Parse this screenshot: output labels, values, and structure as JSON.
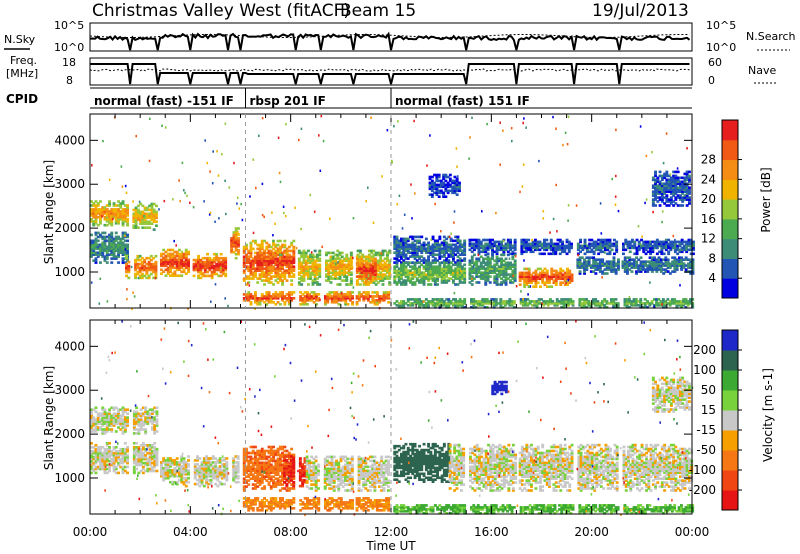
{
  "header": {
    "title": "Christmas Valley West (fitACF)",
    "beam": "Beam 15",
    "date": "19/Jul/2013"
  },
  "strip": {
    "nsky_label": "N.Sky",
    "nsky_ticks": [
      "10^5",
      "10^0"
    ],
    "nsearch_label": "N.Search",
    "freq_label_1": "Freq.",
    "freq_label_2": "[MHz]",
    "freq_ticks": [
      "18",
      "8"
    ],
    "nave_label": "Nave",
    "nave_ticks": [
      "60",
      "0"
    ],
    "cpid_label": "CPID",
    "cpid_segments": [
      {
        "start_hour": 0,
        "end_hour": 6.2,
        "name": "normal (fast) -151 IF"
      },
      {
        "start_hour": 6.2,
        "end_hour": 12.0,
        "name": "rbsp 201 IF"
      },
      {
        "start_hour": 12.0,
        "end_hour": 24,
        "name": "normal (fast) 151 IF"
      }
    ]
  },
  "chart_data": [
    {
      "type": "heatmap",
      "name": "power",
      "ylabel": "Slant Range [km]",
      "xlabel": "Time UT",
      "xlim": [
        0,
        24
      ],
      "ylim": [
        180,
        4600
      ],
      "xticks": [
        "00:00",
        "04:00",
        "08:00",
        "12:00",
        "16:00",
        "20:00",
        "00:00"
      ],
      "yticks": [
        1000,
        2000,
        3000,
        4000
      ],
      "colorbar": {
        "label": "Power [dB]",
        "ticks": [
          4,
          8,
          12,
          16,
          20,
          24,
          28
        ],
        "colors": [
          "#0000e0",
          "#2255b4",
          "#3c8c78",
          "#4caa50",
          "#96c83c",
          "#f0b400",
          "#f58c14",
          "#f05a14",
          "#e61e1e"
        ]
      },
      "gaps_hours": [
        1.6,
        2.7,
        4.0,
        5.5,
        6.0,
        8.2,
        9.2,
        10.5,
        12.0,
        15.0,
        17.0,
        19.3,
        21.1
      ],
      "echo_bands": [
        {
          "t0": 0.0,
          "t1": 1.6,
          "r0": 2050,
          "r1": 2600,
          "level": 22
        },
        {
          "t0": 1.6,
          "t1": 2.7,
          "r0": 1950,
          "r1": 2550,
          "level": 20
        },
        {
          "t0": 0.0,
          "t1": 1.6,
          "r0": 1200,
          "r1": 1900,
          "level": 10
        },
        {
          "t0": 1.4,
          "t1": 2.7,
          "r0": 850,
          "r1": 1350,
          "level": 26
        },
        {
          "t0": 2.7,
          "t1": 4.0,
          "r0": 900,
          "r1": 1500,
          "level": 28
        },
        {
          "t0": 4.0,
          "t1": 5.5,
          "r0": 850,
          "r1": 1400,
          "level": 28
        },
        {
          "t0": 5.5,
          "t1": 6.0,
          "r0": 1300,
          "r1": 2000,
          "level": 26
        },
        {
          "t0": 6.0,
          "t1": 8.2,
          "r0": 700,
          "r1": 1700,
          "level": 27
        },
        {
          "t0": 6.0,
          "t1": 12.0,
          "r0": 250,
          "r1": 550,
          "level": 27
        },
        {
          "t0": 8.2,
          "t1": 12.0,
          "r0": 700,
          "r1": 1500,
          "level": 20
        },
        {
          "t0": 10.6,
          "t1": 11.4,
          "r0": 700,
          "r1": 1350,
          "level": 28
        },
        {
          "t0": 12.0,
          "t1": 15.0,
          "r0": 1200,
          "r1": 1800,
          "level": 7
        },
        {
          "t0": 12.0,
          "t1": 15.0,
          "r0": 700,
          "r1": 1200,
          "level": 15
        },
        {
          "t0": 15.0,
          "t1": 24.0,
          "r0": 1400,
          "r1": 1750,
          "level": 6
        },
        {
          "t0": 15.0,
          "t1": 17.0,
          "r0": 700,
          "r1": 1400,
          "level": 12
        },
        {
          "t0": 17.0,
          "t1": 19.3,
          "r0": 650,
          "r1": 1100,
          "level": 27
        },
        {
          "t0": 19.3,
          "t1": 24.0,
          "r0": 950,
          "r1": 1350,
          "level": 8
        },
        {
          "t0": 12.0,
          "t1": 24.0,
          "r0": 180,
          "r1": 380,
          "level": 14
        },
        {
          "t0": 22.4,
          "t1": 23.9,
          "r0": 2500,
          "r1": 3300,
          "level": 6
        },
        {
          "t0": 13.5,
          "t1": 14.7,
          "r0": 2700,
          "r1": 3200,
          "level": 5
        }
      ]
    },
    {
      "type": "heatmap",
      "name": "velocity",
      "ylabel": "Slant Range [km]",
      "xlabel": "Time UT",
      "xlim": [
        0,
        24
      ],
      "ylim": [
        180,
        4600
      ],
      "xticks": [
        "00:00",
        "04:00",
        "08:00",
        "12:00",
        "16:00",
        "20:00",
        "00:00"
      ],
      "yticks": [
        1000,
        2000,
        3000,
        4000
      ],
      "colorbar": {
        "label": "Velocity [m s-1]",
        "ticks": [
          "200",
          "100",
          "50",
          "15",
          "-15",
          "-50",
          "-100",
          "-200"
        ],
        "colors": [
          "#1e28c8",
          "#2d6450",
          "#3caa32",
          "#78d23c",
          "#c8c8c8",
          "#f5a000",
          "#f57814",
          "#f04614",
          "#e61414"
        ]
      },
      "echo_bands": [
        {
          "t0": 0.0,
          "t1": 2.7,
          "r0": 2000,
          "r1": 2600,
          "vel": 0
        },
        {
          "t0": 0.0,
          "t1": 2.7,
          "r0": 1100,
          "r1": 1800,
          "vel": 0
        },
        {
          "t0": 2.7,
          "t1": 6.0,
          "r0": 800,
          "r1": 1500,
          "vel": 0
        },
        {
          "t0": 6.0,
          "t1": 8.2,
          "r0": 700,
          "r1": 1700,
          "vel": -60
        },
        {
          "t0": 7.7,
          "t1": 8.6,
          "r0": 800,
          "r1": 1500,
          "vel": -150
        },
        {
          "t0": 6.0,
          "t1": 12.0,
          "r0": 250,
          "r1": 550,
          "vel": -40
        },
        {
          "t0": 8.6,
          "t1": 12.0,
          "r0": 700,
          "r1": 1500,
          "vel": 0
        },
        {
          "t0": 12.0,
          "t1": 14.3,
          "r0": 900,
          "r1": 1800,
          "vel": 120
        },
        {
          "t0": 14.3,
          "t1": 24.0,
          "r0": 700,
          "r1": 1750,
          "vel": 0
        },
        {
          "t0": 12.0,
          "t1": 24.0,
          "r0": 180,
          "r1": 380,
          "vel": 40
        },
        {
          "t0": 22.4,
          "t1": 23.9,
          "r0": 2500,
          "r1": 3300,
          "vel": 0
        },
        {
          "t0": 16.0,
          "t1": 16.6,
          "r0": 2900,
          "r1": 3200,
          "vel": 220
        }
      ]
    }
  ],
  "xaxis_title": "Time UT"
}
